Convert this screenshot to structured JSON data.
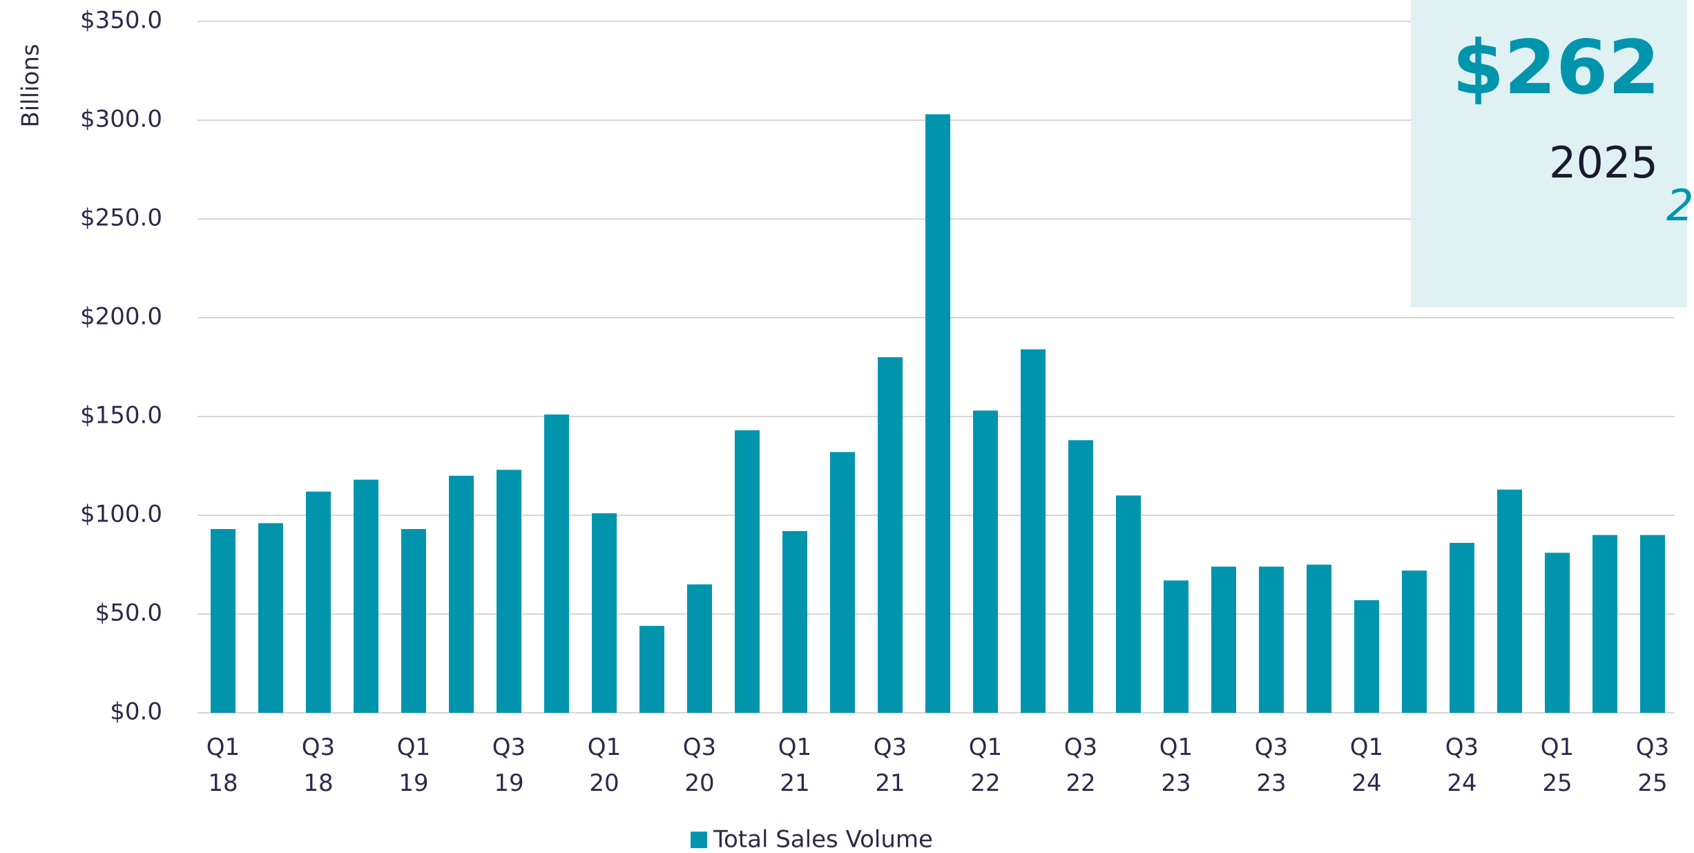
{
  "chart_data": {
    "type": "bar",
    "y_label": "Billions",
    "categories": [
      "Q1\n18",
      null,
      "Q3\n18",
      null,
      "Q1\n19",
      null,
      "Q3\n19",
      null,
      "Q1\n20",
      null,
      "Q3\n20",
      null,
      "Q1\n21",
      null,
      "Q3\n21",
      null,
      "Q1\n22",
      null,
      "Q3\n22",
      null,
      "Q1\n23",
      null,
      "Q3\n23",
      null,
      "Q1\n24",
      null,
      "Q3\n24",
      null,
      "Q1\n25",
      null,
      "Q3\n25"
    ],
    "series": [
      {
        "name": "Total Sales Volume",
        "color": "#0095ad",
        "values": [
          93,
          96,
          112,
          118,
          93,
          120,
          123,
          151,
          101,
          44,
          65,
          143,
          92,
          132,
          180,
          303,
          153,
          184,
          138,
          110,
          67,
          74,
          74,
          75,
          57,
          72,
          86,
          113,
          81,
          90,
          90
        ]
      }
    ],
    "ylim": [
      0,
      350
    ],
    "yticks": [
      {
        "value": 0,
        "label": "$0.0"
      },
      {
        "value": 50,
        "label": "$50.0"
      },
      {
        "value": 100,
        "label": "$100.0"
      },
      {
        "value": 150,
        "label": "$150.0"
      },
      {
        "value": 200,
        "label": "$200.0"
      },
      {
        "value": 250,
        "label": "$250.0"
      },
      {
        "value": 300,
        "label": "$300.0"
      },
      {
        "value": 350,
        "label": "$350.0"
      }
    ],
    "grid": true,
    "annotations": [
      "$262",
      "2025",
      "2"
    ]
  }
}
